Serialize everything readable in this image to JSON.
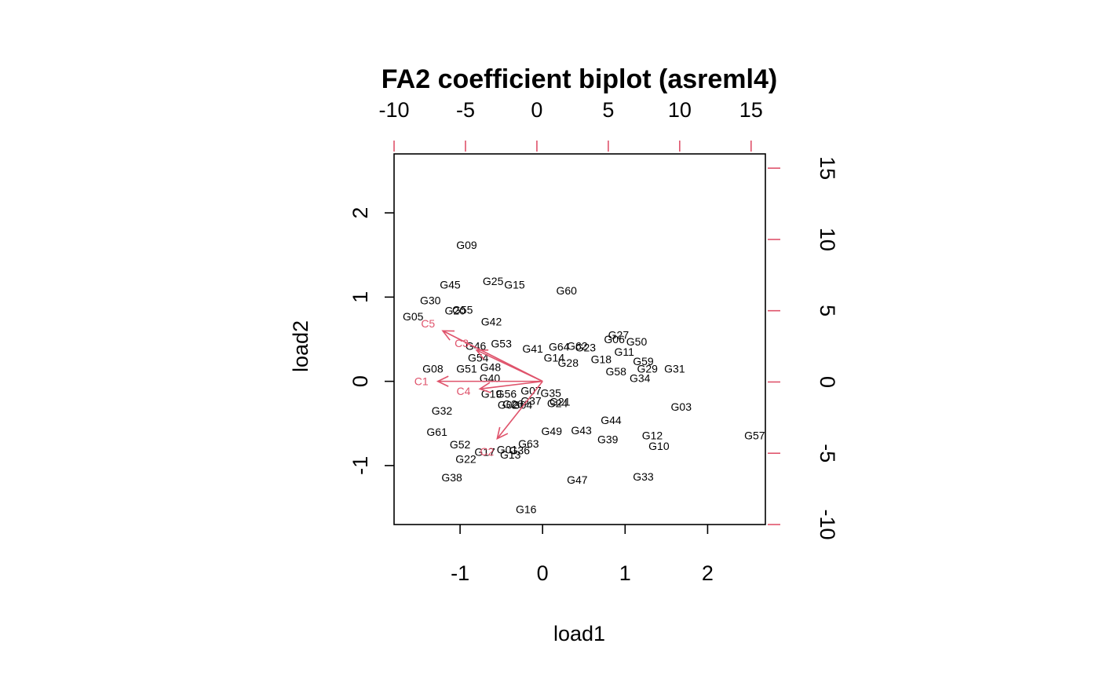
{
  "chart_data": {
    "type": "scatter",
    "title": "FA2 coefficient biplot (asreml4)",
    "xlabel": "load1",
    "ylabel": "load2",
    "xlim": [
      -1.8,
      2.7
    ],
    "ylim": [
      -1.7,
      2.7
    ],
    "x_ticks": [
      "-1",
      "0",
      "1",
      "2"
    ],
    "y_ticks": [
      "-1",
      "0",
      "1",
      "2"
    ],
    "top_ticks": [
      "-10",
      "-5",
      "0",
      "5",
      "10",
      "15"
    ],
    "right_ticks": [
      "-10",
      "-5",
      "0",
      "5",
      "10",
      "15"
    ],
    "top_lim": [
      -10,
      16
    ],
    "right_lim": [
      -10,
      16
    ],
    "arrow_color": "#DF536B",
    "box": true,
    "grid": false,
    "points": [
      {
        "label": "G09",
        "x": -0.92,
        "y": 1.62
      },
      {
        "label": "G45",
        "x": -1.12,
        "y": 1.15
      },
      {
        "label": "G25",
        "x": -0.6,
        "y": 1.19
      },
      {
        "label": "G15",
        "x": -0.34,
        "y": 1.15
      },
      {
        "label": "G60",
        "x": 0.29,
        "y": 1.08
      },
      {
        "label": "G30",
        "x": -1.36,
        "y": 0.96
      },
      {
        "label": "G20",
        "x": -1.06,
        "y": 0.84
      },
      {
        "label": "G55",
        "x": -0.97,
        "y": 0.85
      },
      {
        "label": "G05",
        "x": -1.57,
        "y": 0.77
      },
      {
        "label": "G42",
        "x": -0.62,
        "y": 0.71
      },
      {
        "label": "G53",
        "x": -0.5,
        "y": 0.45
      },
      {
        "label": "G46",
        "x": -0.81,
        "y": 0.42
      },
      {
        "label": "G41",
        "x": -0.12,
        "y": 0.39
      },
      {
        "label": "G64",
        "x": 0.2,
        "y": 0.41
      },
      {
        "label": "G62",
        "x": 0.42,
        "y": 0.42
      },
      {
        "label": "G23",
        "x": 0.52,
        "y": 0.4
      },
      {
        "label": "G27",
        "x": 0.92,
        "y": 0.55
      },
      {
        "label": "G06",
        "x": 0.87,
        "y": 0.5
      },
      {
        "label": "G50",
        "x": 1.14,
        "y": 0.47
      },
      {
        "label": "G11",
        "x": 0.99,
        "y": 0.35
      },
      {
        "label": "G14",
        "x": 0.14,
        "y": 0.28
      },
      {
        "label": "G28",
        "x": 0.31,
        "y": 0.22
      },
      {
        "label": "G18",
        "x": 0.71,
        "y": 0.26
      },
      {
        "label": "G59",
        "x": 1.22,
        "y": 0.24
      },
      {
        "label": "G54",
        "x": -0.78,
        "y": 0.28
      },
      {
        "label": "G08",
        "x": -1.33,
        "y": 0.15
      },
      {
        "label": "G51",
        "x": -0.92,
        "y": 0.15
      },
      {
        "label": "G48",
        "x": -0.63,
        "y": 0.17
      },
      {
        "label": "G29",
        "x": 1.27,
        "y": 0.15
      },
      {
        "label": "G31",
        "x": 1.6,
        "y": 0.15
      },
      {
        "label": "G58",
        "x": 0.89,
        "y": 0.12
      },
      {
        "label": "G34",
        "x": 1.18,
        "y": 0.04
      },
      {
        "label": "G40",
        "x": -0.64,
        "y": 0.04
      },
      {
        "label": "G07",
        "x": -0.14,
        "y": -0.11
      },
      {
        "label": "G35",
        "x": 0.1,
        "y": -0.14
      },
      {
        "label": "G19",
        "x": -0.62,
        "y": -0.15
      },
      {
        "label": "G56",
        "x": -0.44,
        "y": -0.15
      },
      {
        "label": "G37",
        "x": -0.14,
        "y": -0.23
      },
      {
        "label": "G21",
        "x": 0.21,
        "y": -0.24
      },
      {
        "label": "G24",
        "x": 0.18,
        "y": -0.26
      },
      {
        "label": "G02",
        "x": -0.42,
        "y": -0.28
      },
      {
        "label": "G04",
        "x": -0.25,
        "y": -0.28
      },
      {
        "label": "G26",
        "x": -0.36,
        "y": -0.27
      },
      {
        "label": "G32",
        "x": -1.22,
        "y": -0.35
      },
      {
        "label": "G03",
        "x": 1.68,
        "y": -0.3
      },
      {
        "label": "G44",
        "x": 0.83,
        "y": -0.46
      },
      {
        "label": "G43",
        "x": 0.47,
        "y": -0.58
      },
      {
        "label": "G49",
        "x": 0.11,
        "y": -0.59
      },
      {
        "label": "G61",
        "x": -1.28,
        "y": -0.6
      },
      {
        "label": "G12",
        "x": 1.33,
        "y": -0.64
      },
      {
        "label": "G39",
        "x": 0.79,
        "y": -0.69
      },
      {
        "label": "G57",
        "x": 2.57,
        "y": -0.64
      },
      {
        "label": "G52",
        "x": -1.0,
        "y": -0.75
      },
      {
        "label": "G63",
        "x": -0.17,
        "y": -0.74
      },
      {
        "label": "G10",
        "x": 1.41,
        "y": -0.77
      },
      {
        "label": "G01",
        "x": -0.43,
        "y": -0.81
      },
      {
        "label": "G36",
        "x": -0.28,
        "y": -0.82
      },
      {
        "label": "G17",
        "x": -0.7,
        "y": -0.84
      },
      {
        "label": "G13",
        "x": -0.39,
        "y": -0.87
      },
      {
        "label": "G22",
        "x": -0.93,
        "y": -0.92
      },
      {
        "label": "G38",
        "x": -1.1,
        "y": -1.14
      },
      {
        "label": "G47",
        "x": 0.42,
        "y": -1.17
      },
      {
        "label": "G33",
        "x": 1.22,
        "y": -1.13
      },
      {
        "label": "G16",
        "x": -0.2,
        "y": -1.52
      }
    ],
    "arrows": [
      {
        "label": "C1",
        "x": -1.27,
        "y": 0.0
      },
      {
        "label": "C5",
        "x": -1.21,
        "y": 0.6
      },
      {
        "label": "C3",
        "x": -0.8,
        "y": 0.37
      },
      {
        "label": "C4",
        "x": -0.76,
        "y": -0.09
      },
      {
        "label": "C2",
        "x": -0.55,
        "y": -0.68
      }
    ]
  }
}
